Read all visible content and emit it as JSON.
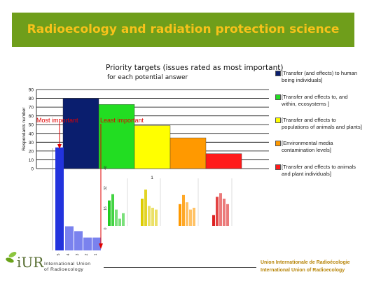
{
  "header": {
    "title": "Radioecology and radiation protection science"
  },
  "chart_data": {
    "type": "bar",
    "title": "Priority targets (issues rated as most important)",
    "subtitle": "for each potential answer",
    "ylabel": "Respondants number",
    "xtick": "1",
    "ylim": [
      0,
      90
    ],
    "yticks": [
      0,
      10,
      20,
      30,
      40,
      50,
      60,
      70,
      80,
      90
    ],
    "grid": true,
    "legend_position": "right",
    "series": [
      {
        "name": "[Transfer (and effects) to human being individuals]",
        "value": 80,
        "color": "#0a1e6e"
      },
      {
        "name": "[Transfer and effects to, and within, ecosystems ]",
        "value": 73,
        "color": "#22dd22"
      },
      {
        "name": "[Transfer and effects to populations of animals and plants]",
        "value": 49,
        "color": "#ffff00"
      },
      {
        "name": "[Environmental media contamination levels]",
        "value": 35,
        "color": "#ff9900"
      },
      {
        "name": "[Transfer and effects to animals and plant individuals]",
        "value": 17,
        "color": "#ff1a1a"
      }
    ],
    "annotations": {
      "most": "Most important",
      "least": "Least important"
    },
    "inset_charts": [
      {
        "color": "#2233dd",
        "ticks": [
          "5",
          "4",
          "3",
          "2",
          "1"
        ],
        "values": [
          64,
          15,
          12,
          8,
          8
        ]
      },
      {
        "color": "#22cc22",
        "ticks": [
          "48",
          "32",
          "16",
          "0"
        ],
        "values": [
          28,
          35,
          18,
          8,
          14
        ]
      },
      {
        "color": "#ddcc00",
        "ticks": [],
        "values": [
          30,
          40,
          22,
          20,
          18
        ]
      },
      {
        "color": "#ff9900",
        "ticks": [],
        "values": [
          24,
          34,
          26,
          18,
          20
        ]
      },
      {
        "color": "#dd2222",
        "ticks": [],
        "values": [
          12,
          32,
          36,
          30,
          24
        ]
      }
    ]
  },
  "footer": {
    "logo_letters": "iUR",
    "org_line1": "International Union",
    "org_line2": "of Radioecology",
    "right_line1": "Union Internationale de Radioécologie",
    "right_line2": "International Union of Radioecology"
  }
}
